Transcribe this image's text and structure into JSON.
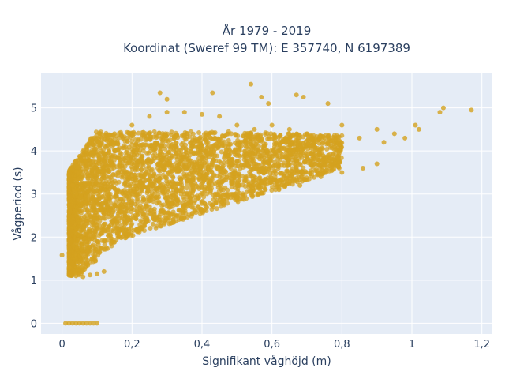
{
  "title": {
    "line1": "År 1979 - 2019",
    "line2": "Koordinat (Sweref 99 TM): E 357740, N 6197389"
  },
  "colors": {
    "marker": "#d4a21f",
    "plot_bg": "#e5ecf6",
    "grid": "#ffffff",
    "text": "#2a3f5f"
  },
  "chart_data": {
    "type": "scatter",
    "title": "År 1979 - 2019 / Koordinat (Sweref 99 TM): E 357740, N 6197389",
    "xlabel": "Signifikant våghöjd (m)",
    "ylabel": "Vågperiod (s)",
    "xlim": [
      -0.06,
      1.23
    ],
    "ylim": [
      -0.25,
      5.8
    ],
    "x_ticks": [
      0,
      0.2,
      0.4,
      0.6,
      0.8,
      1.0,
      1.2
    ],
    "x_tick_labels": [
      "0",
      "0,2",
      "0,4",
      "0,6",
      "0,8",
      "1",
      "1,2"
    ],
    "y_ticks": [
      0,
      1,
      2,
      3,
      4,
      5
    ],
    "y_tick_labels": [
      "0",
      "1",
      "2",
      "3",
      "4",
      "5"
    ],
    "grid": true,
    "legend": "none",
    "series": [
      {
        "x": [
          0.01,
          0.02,
          0.03,
          0.04,
          0.05,
          0.06,
          0.07,
          0.08,
          0.09,
          0.1,
          0.0,
          0.02,
          0.04,
          0.06,
          0.08,
          0.1,
          0.12,
          0.03,
          0.05,
          0.07,
          0.1,
          0.15,
          0.2,
          0.25,
          0.3,
          0.35,
          0.4,
          0.45,
          0.5,
          0.55,
          0.6,
          0.65,
          0.7,
          0.75,
          0.8,
          0.85,
          0.9,
          0.92,
          0.95,
          0.98,
          1.01,
          1.02,
          1.08,
          1.09,
          1.17,
          0.28,
          0.3,
          0.43,
          0.54,
          0.57,
          0.59,
          0.67,
          0.69,
          0.76,
          0.07,
          0.09,
          0.12,
          0.15,
          0.18,
          0.22,
          0.26,
          0.32,
          0.38,
          0.44,
          0.5,
          0.56,
          0.62,
          0.68,
          0.74,
          0.8,
          0.86,
          0.9
        ],
        "y": [
          0,
          0,
          0,
          0,
          0,
          0,
          0,
          0,
          0,
          0,
          1.58,
          1.3,
          1.1,
          1.08,
          1.12,
          1.15,
          1.2,
          3.2,
          3.5,
          4.0,
          4.2,
          4.4,
          4.6,
          4.8,
          4.9,
          4.9,
          4.85,
          4.8,
          4.6,
          4.5,
          4.6,
          4.5,
          4.4,
          4.3,
          4.6,
          4.3,
          4.5,
          4.2,
          4.4,
          4.3,
          4.6,
          4.5,
          4.9,
          5.0,
          4.95,
          5.35,
          5.2,
          5.35,
          5.55,
          5.25,
          5.1,
          5.3,
          5.25,
          5.1,
          2.5,
          2.6,
          2.3,
          2.2,
          2.1,
          2.2,
          2.3,
          2.5,
          2.6,
          2.8,
          2.9,
          3.0,
          3.1,
          3.2,
          3.4,
          3.5,
          3.6,
          3.7
        ]
      }
    ]
  }
}
